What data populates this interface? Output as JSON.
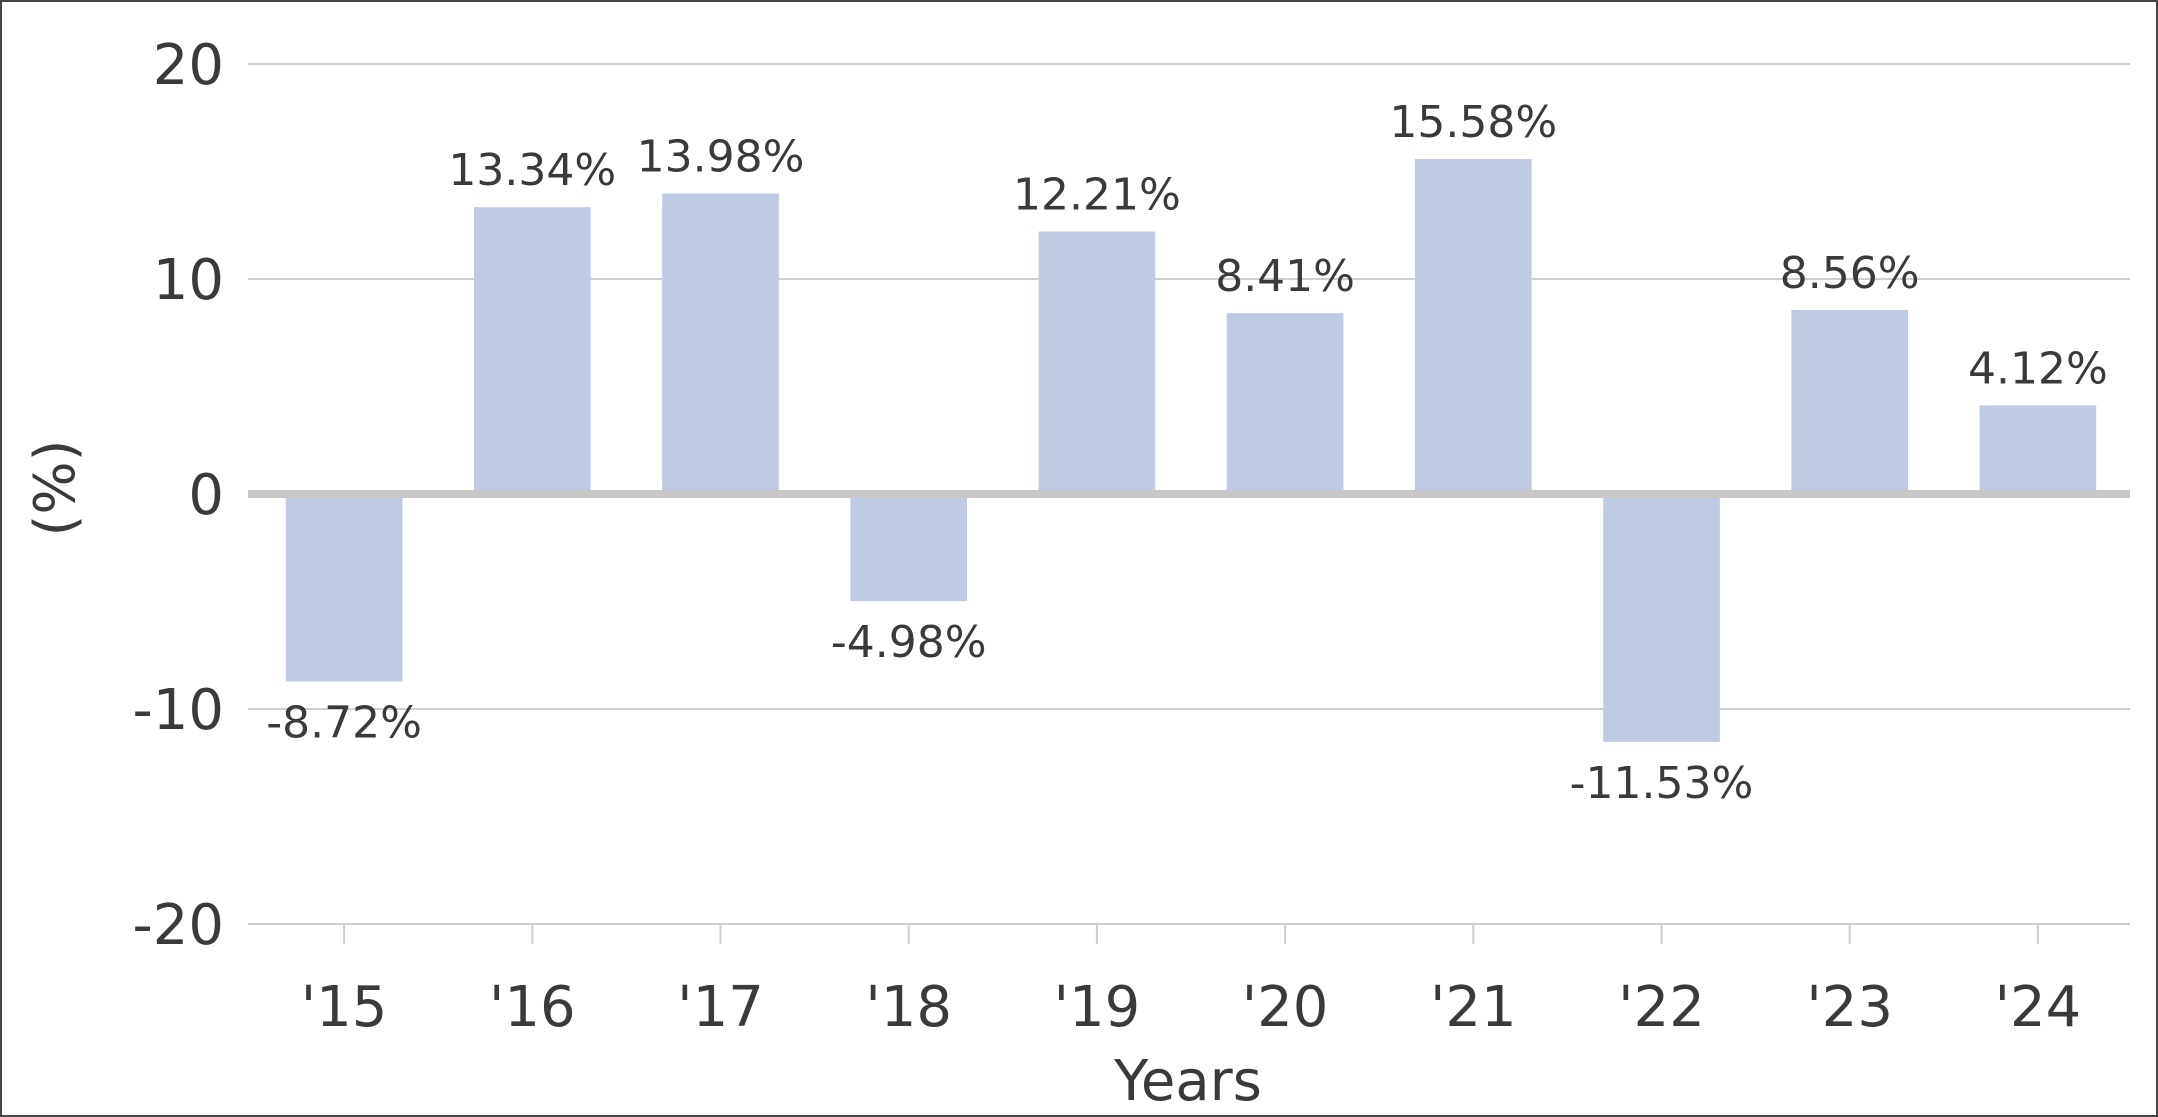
{
  "chart_data": {
    "type": "bar",
    "title": "",
    "xlabel": "Years",
    "ylabel": "(%)",
    "categories": [
      "'15",
      "'16",
      "'17",
      "'18",
      "'19",
      "'20",
      "'21",
      "'22",
      "'23",
      "'24"
    ],
    "values": [
      -8.72,
      13.34,
      13.98,
      -4.98,
      12.21,
      8.41,
      15.58,
      -11.53,
      8.56,
      4.12
    ],
    "data_labels": [
      "-8.72%",
      "13.34%",
      "13.98%",
      "-4.98%",
      "12.21%",
      "8.41%",
      "15.58%",
      "-11.53%",
      "8.56%",
      "4.12%"
    ],
    "ylim": [
      -20,
      20
    ],
    "yticks": [
      -20,
      -10,
      0,
      10,
      20
    ],
    "ytick_labels": [
      "-20",
      "-10",
      "0",
      "10",
      "20"
    ],
    "grid": true,
    "legend": "none",
    "colors": {
      "bar": "#bfcbe3",
      "grid": "#cfcfcf",
      "zero_line": "#c8c8c8",
      "text": "#3a3a3a",
      "border": "#444444"
    }
  }
}
